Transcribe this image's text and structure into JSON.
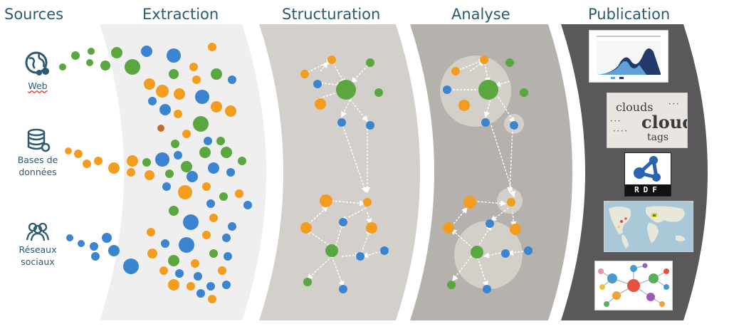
{
  "headers": {
    "sources": "Sources",
    "extraction": "Extraction",
    "structuration": "Structuration",
    "analyse": "Analyse",
    "publication": "Publication"
  },
  "sources": [
    {
      "label": "Web",
      "icon": "globe-icon"
    },
    {
      "label": "Bases de\ndonnées",
      "icon": "database-icon"
    },
    {
      "label": "Réseaux\nsociaux",
      "icon": "people-icon"
    }
  ],
  "publication": {
    "cloud_words": [
      "clouds",
      "cloud",
      "tags"
    ],
    "rdf_label": "RDF"
  },
  "colors": {
    "heading": "#2c5a6e",
    "orange": "#f39c1e",
    "blue": "#3b84d2",
    "green": "#5aa63f",
    "brown": "#c46a2d",
    "extraction_band": "#efefef",
    "structuration_band": "#d3d0cb",
    "analyse_band": "#b5b2ad",
    "publication_band": "#5b585c"
  }
}
